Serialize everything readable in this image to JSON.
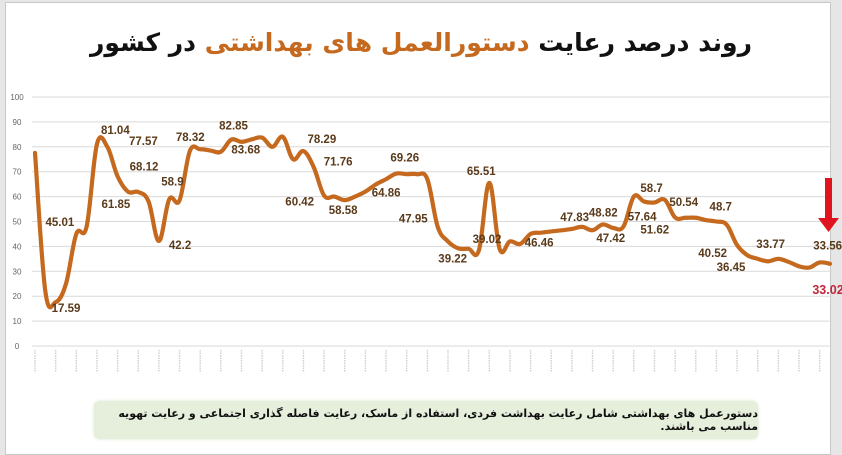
{
  "title": {
    "part1": "روند درصد رعایت ",
    "highlight": "دستورالعمل های بهداشتی",
    "part2": " در کشور"
  },
  "note": "دستورعمل های بهداشتی شامل رعایت بهداشت فردی، استفاده از ماسک، رعایت فاصله گذاری اجتماعی و رعایت تهویه مناسب می باشند.",
  "colors": {
    "line": "#c5691f",
    "gridline": "#d9d9d9",
    "label": "#5a3a1a",
    "last_label": "#c0273a",
    "arrow": "#e0141e",
    "note_bg": "#e6efdb"
  },
  "chart_data": {
    "type": "line",
    "title": "روند درصد رعایت دستورالعمل های بهداشتی در کشور",
    "xlabel": "",
    "ylabel": "",
    "ylim": [
      0,
      100
    ],
    "yticks": [
      0,
      10,
      20,
      30,
      40,
      50,
      60,
      70,
      80,
      90,
      100
    ],
    "grid": true,
    "legend": "none",
    "series": [
      {
        "name": "درصد رعایت",
        "values": [
          77.57,
          22,
          17.59,
          25,
          45.01,
          48,
          81.04,
          80,
          68.12,
          62,
          61.85,
          58,
          42.2,
          58.9,
          58.5,
          78.32,
          79,
          78.5,
          78,
          82.85,
          82,
          83,
          83.68,
          80,
          84,
          75,
          78.29,
          71.76,
          60.42,
          60,
          58.58,
          60,
          62,
          64.86,
          67,
          69.26,
          69,
          69,
          67,
          47.95,
          42,
          39.22,
          39.02,
          38.5,
          65.51,
          39,
          42,
          41,
          45,
          45.5,
          46,
          46.46,
          47,
          47.83,
          46.5,
          48.82,
          47.42,
          48,
          60,
          58,
          57.64,
          58.7,
          51.62,
          51.5,
          51.5,
          50.54,
          50,
          48.7,
          40.52,
          36.45,
          35,
          34,
          35,
          33.77,
          32,
          31.5,
          33.56,
          33.02
        ]
      }
    ],
    "data_labels": [
      {
        "text": "77.57",
        "index": 0
      },
      {
        "text": "17.59",
        "index": 2
      },
      {
        "text": "45.01",
        "index": 4
      },
      {
        "text": "81.04",
        "index": 6
      },
      {
        "text": "68.12",
        "index": 8
      },
      {
        "text": "61.85",
        "index": 10
      },
      {
        "text": "42.2",
        "index": 12
      },
      {
        "text": "58.9",
        "index": 13
      },
      {
        "text": "78.32",
        "index": 15
      },
      {
        "text": "82.85",
        "index": 19
      },
      {
        "text": "83.68",
        "index": 22
      },
      {
        "text": "78.29",
        "index": 26
      },
      {
        "text": "71.76",
        "index": 27
      },
      {
        "text": "60.42",
        "index": 28
      },
      {
        "text": "58.58",
        "index": 30
      },
      {
        "text": "64.86",
        "index": 33
      },
      {
        "text": "69.26",
        "index": 35
      },
      {
        "text": "47.95",
        "index": 39
      },
      {
        "text": "39.22",
        "index": 41
      },
      {
        "text": "39.02",
        "index": 42
      },
      {
        "text": "65.51",
        "index": 44
      },
      {
        "text": "46.46",
        "index": 51
      },
      {
        "text": "47.83",
        "index": 53
      },
      {
        "text": "48.82",
        "index": 55
      },
      {
        "text": "47.42",
        "index": 56
      },
      {
        "text": "57.64",
        "index": 60
      },
      {
        "text": "58.7",
        "index": 61
      },
      {
        "text": "51.62",
        "index": 62
      },
      {
        "text": "50.54",
        "index": 65
      },
      {
        "text": "48.7",
        "index": 67
      },
      {
        "text": "40.52",
        "index": 68
      },
      {
        "text": "36.45",
        "index": 69
      },
      {
        "text": "33.77",
        "index": 73
      },
      {
        "text": "33.56",
        "index": 76
      },
      {
        "text": "33.02",
        "index": 77
      }
    ],
    "annotations": [
      "red down arrow pointing to latest value 33.02"
    ],
    "x_tick_labels_note": "Persian date labels (rotated, illegible at source resolution), first label ends with 1399"
  }
}
